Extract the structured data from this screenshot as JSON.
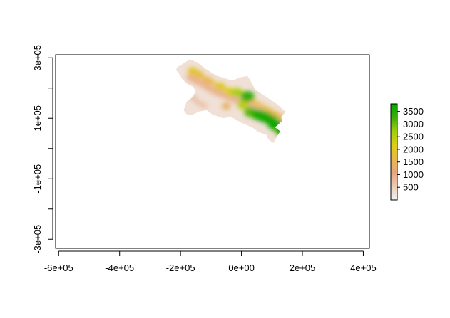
{
  "chart_data": {
    "type": "heatmap",
    "title": "",
    "xlabel": "",
    "ylabel": "",
    "x_ticks": [
      {
        "value": -600000,
        "label": "-6e+05"
      },
      {
        "value": -400000,
        "label": "-4e+05"
      },
      {
        "value": -200000,
        "label": "-2e+05"
      },
      {
        "value": 0,
        "label": "0e+00"
      },
      {
        "value": 200000,
        "label": "2e+05"
      },
      {
        "value": 400000,
        "label": "4e+05"
      }
    ],
    "x_minor_ticks": [],
    "y_ticks": [
      {
        "value": 300000,
        "label": "3e+05"
      },
      {
        "value": 100000,
        "label": "1e+05"
      },
      {
        "value": -100000,
        "label": "-1e+05"
      },
      {
        "value": -300000,
        "label": "-3e+05"
      }
    ],
    "y_minor_ticks": [
      200000,
      0,
      -200000
    ],
    "xlim": [
      -610000,
      420000
    ],
    "ylim": [
      -330000,
      310000
    ],
    "legend": {
      "placement": "right",
      "ticks": [
        {
          "value": 500,
          "label": "500"
        },
        {
          "value": 1000,
          "label": "1000"
        },
        {
          "value": 1500,
          "label": "1500"
        },
        {
          "value": 2000,
          "label": "2000"
        },
        {
          "value": 2500,
          "label": "2500"
        },
        {
          "value": 3000,
          "label": "3000"
        },
        {
          "value": 3500,
          "label": "3500"
        }
      ],
      "range": [
        0,
        3800
      ],
      "colors": [
        "#f2f2f2",
        "#eecbb5",
        "#e8a57c",
        "#e8b84a",
        "#dccf13",
        "#9fce0d",
        "#3eae0a",
        "#00a600"
      ]
    },
    "land": [
      [
        -210000,
        270000
      ],
      [
        -200000,
        275000
      ],
      [
        -170000,
        295000
      ],
      [
        -145000,
        285000
      ],
      [
        -120000,
        265000
      ],
      [
        -80000,
        240000
      ],
      [
        -30000,
        225000
      ],
      [
        -5000,
        235000
      ],
      [
        20000,
        240000
      ],
      [
        35000,
        215000
      ],
      [
        45000,
        195000
      ],
      [
        70000,
        178000
      ],
      [
        110000,
        152000
      ],
      [
        145000,
        122000
      ],
      [
        130000,
        103000
      ],
      [
        135000,
        92000
      ],
      [
        110000,
        70000
      ],
      [
        127000,
        57000
      ],
      [
        110000,
        28000
      ],
      [
        105000,
        18000
      ],
      [
        88000,
        30000
      ],
      [
        82000,
        45000
      ],
      [
        55000,
        55000
      ],
      [
        35000,
        70000
      ],
      [
        0,
        85000
      ],
      [
        -35000,
        105000
      ],
      [
        -60000,
        100000
      ],
      [
        -95000,
        112000
      ],
      [
        -115000,
        127000
      ],
      [
        -140000,
        122000
      ],
      [
        -160000,
        112000
      ],
      [
        -180000,
        113000
      ],
      [
        -190000,
        127000
      ],
      [
        -185000,
        140000
      ],
      [
        -180000,
        155000
      ],
      [
        -160000,
        170000
      ],
      [
        -150000,
        190000
      ],
      [
        -160000,
        205000
      ],
      [
        -180000,
        215000
      ],
      [
        -195000,
        230000
      ],
      [
        -205000,
        248000
      ],
      [
        -215000,
        260000
      ]
    ],
    "ridges": [
      {
        "elevation": 900,
        "width": 22000,
        "points": [
          [
            -170000,
            235000
          ],
          [
            -130000,
            215000
          ],
          [
            -90000,
            190000
          ],
          [
            -40000,
            170000
          ],
          [
            10000,
            150000
          ],
          [
            60000,
            122000
          ],
          [
            110000,
            100000
          ],
          [
            135000,
            75000
          ]
        ]
      },
      {
        "elevation": 1700,
        "width": 13000,
        "points": [
          [
            -170000,
            260000
          ],
          [
            -135000,
            242000
          ],
          [
            -90000,
            215000
          ],
          [
            -45000,
            192000
          ],
          [
            0,
            175000
          ],
          [
            40000,
            155000
          ],
          [
            90000,
            128000
          ],
          [
            140000,
            100000
          ]
        ]
      },
      {
        "elevation": 700,
        "width": 16000,
        "points": [
          [
            -190000,
            175000
          ],
          [
            -160000,
            170000
          ],
          [
            -140000,
            150000
          ],
          [
            -120000,
            140000
          ]
        ]
      }
    ],
    "peaks": [
      {
        "x": -160000,
        "y": 255000,
        "elevation": 1900
      },
      {
        "x": -140000,
        "y": 245000,
        "elevation": 1700
      },
      {
        "x": -110000,
        "y": 225000,
        "elevation": 1600
      },
      {
        "x": -70000,
        "y": 205000,
        "elevation": 2000
      },
      {
        "x": -40000,
        "y": 188000,
        "elevation": 2100
      },
      {
        "x": -15000,
        "y": 185000,
        "elevation": 2600
      },
      {
        "x": 20000,
        "y": 172000,
        "elevation": 3400
      },
      {
        "x": 5000,
        "y": 145000,
        "elevation": 2500
      },
      {
        "x": 30000,
        "y": 120000,
        "elevation": 3100
      },
      {
        "x": 55000,
        "y": 112000,
        "elevation": 3500
      },
      {
        "x": 75000,
        "y": 105000,
        "elevation": 3600
      },
      {
        "x": 95000,
        "y": 95000,
        "elevation": 3400
      },
      {
        "x": 110000,
        "y": 80000,
        "elevation": 3700
      },
      {
        "x": 125000,
        "y": 65000,
        "elevation": 3000
      },
      {
        "x": 140000,
        "y": 55000,
        "elevation": 3800
      },
      {
        "x": -50000,
        "y": 140000,
        "elevation": 1400
      }
    ]
  }
}
